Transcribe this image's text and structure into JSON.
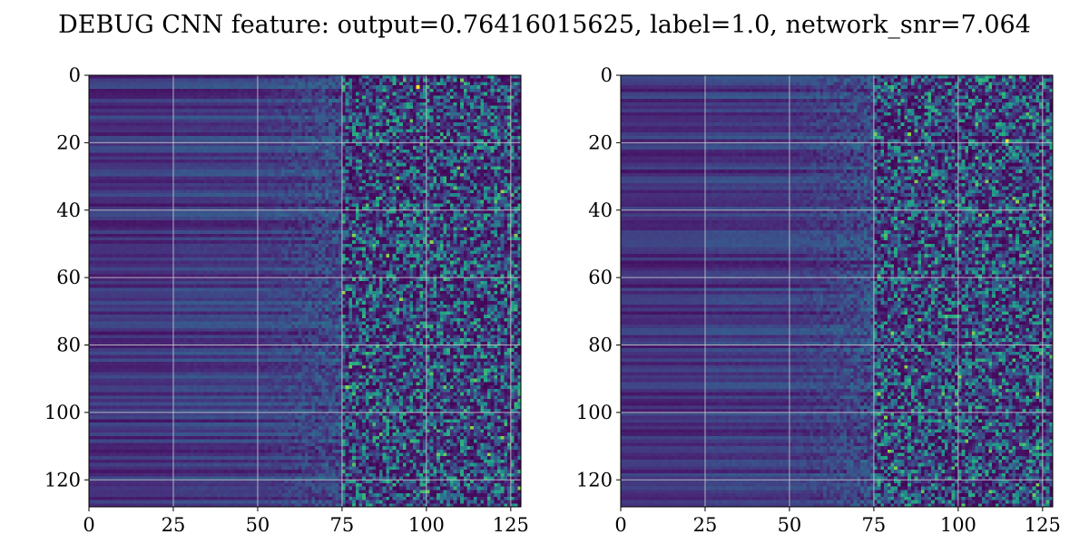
{
  "chart_data": {
    "title": "DEBUG CNN feature: output=0.76416015625, label=1.0, network_snr=7.064",
    "panels": [
      {
        "type": "heatmap",
        "title": "",
        "colormap": "viridis",
        "xlim": [
          0,
          128
        ],
        "ylim": [
          128,
          0
        ],
        "xticks": [
          0,
          25,
          50,
          75,
          100,
          125
        ],
        "yticks": [
          0,
          20,
          40,
          60,
          80,
          100,
          120
        ],
        "grid": true,
        "hot_spot": [
          97,
          3
        ]
      },
      {
        "type": "heatmap",
        "title": "",
        "colormap": "viridis",
        "xlim": [
          0,
          128
        ],
        "ylim": [
          128,
          0
        ],
        "xticks": [
          0,
          25,
          50,
          75,
          100,
          125
        ],
        "yticks": [
          0,
          20,
          40,
          60,
          80,
          100,
          120
        ],
        "grid": true,
        "hot_spot": [
          114,
          19
        ]
      }
    ]
  }
}
